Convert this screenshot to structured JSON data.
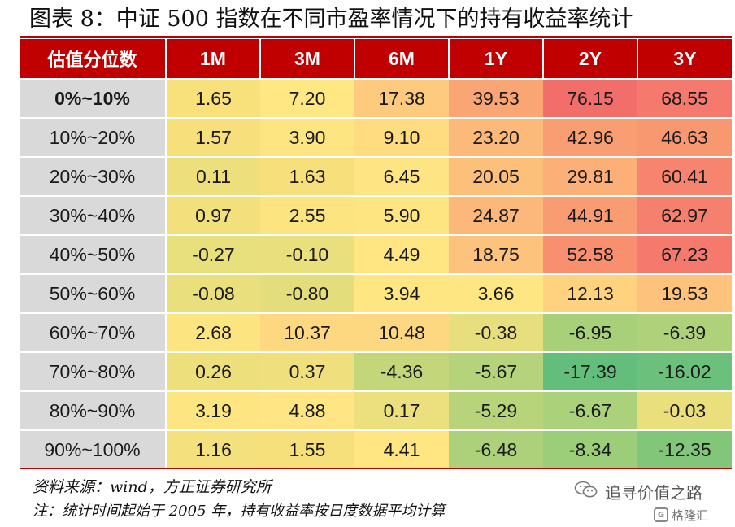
{
  "title": "图表 8：中证 500 指数在不同市盈率情况下的持有收益率统计",
  "table": {
    "headers": [
      "估值分位数",
      "1M",
      "3M",
      "6M",
      "1Y",
      "2Y",
      "3Y"
    ],
    "rows": [
      {
        "label": "0%~10%",
        "values": [
          "1.65",
          "7.20",
          "17.38",
          "39.53",
          "76.15",
          "68.55"
        ],
        "colors": [
          "#f8e07a",
          "#ffe784",
          "#fdca7e",
          "#f9a574",
          "#f26e6b",
          "#f5796d"
        ]
      },
      {
        "label": "10%~20%",
        "values": [
          "1.57",
          "3.90",
          "9.10",
          "23.20",
          "42.96",
          "46.63"
        ],
        "colors": [
          "#f7e07b",
          "#fde682",
          "#ffdc80",
          "#fcba7a",
          "#f99e73",
          "#f89871"
        ]
      },
      {
        "label": "20%~30%",
        "values": [
          "0.11",
          "1.63",
          "6.45",
          "20.05",
          "29.81",
          "60.41"
        ],
        "colors": [
          "#eedf7d",
          "#f7e07b",
          "#ffe483",
          "#fdc07b",
          "#fcb078",
          "#f6846e"
        ]
      },
      {
        "label": "30%~40%",
        "values": [
          "0.97",
          "2.55",
          "5.90",
          "24.87",
          "44.91",
          "62.97"
        ],
        "colors": [
          "#f3e07c",
          "#fce580",
          "#ffe482",
          "#fcb77a",
          "#f99c72",
          "#f6806e"
        ]
      },
      {
        "label": "40%~50%",
        "values": [
          "-0.27",
          "-0.10",
          "4.49",
          "18.75",
          "52.58",
          "67.23"
        ],
        "colors": [
          "#e8df7d",
          "#eadf7d",
          "#ffe683",
          "#fdc37c",
          "#f89070",
          "#f57a6d"
        ]
      },
      {
        "label": "50%~60%",
        "values": [
          "-0.08",
          "-0.80",
          "3.94",
          "3.66",
          "12.13",
          "19.53"
        ],
        "colors": [
          "#eadf7d",
          "#e3dd7c",
          "#fee682",
          "#fee682",
          "#fed27f",
          "#fdc27b"
        ]
      },
      {
        "label": "60%~70%",
        "values": [
          "2.68",
          "10.37",
          "10.48",
          "-0.38",
          "-6.95",
          "-6.39"
        ],
        "colors": [
          "#fce580",
          "#fed880",
          "#fed880",
          "#e7df7d",
          "#a8d079",
          "#aed17a"
        ]
      },
      {
        "label": "70%~80%",
        "values": [
          "0.26",
          "0.37",
          "-4.36",
          "-5.67",
          "-17.39",
          "-16.02"
        ],
        "colors": [
          "#eedf7d",
          "#efdf7d",
          "#c4d67a",
          "#b5d37a",
          "#63be7b",
          "#6bc07b"
        ]
      },
      {
        "label": "80%~90%",
        "values": [
          "3.19",
          "4.88",
          "0.17",
          "-5.29",
          "-6.67",
          "-0.03"
        ],
        "colors": [
          "#fde581",
          "#ffe583",
          "#ecdf7d",
          "#b8d47a",
          "#abd17a",
          "#e9df7d"
        ]
      },
      {
        "label": "90%~100%",
        "values": [
          "1.16",
          "1.55",
          "4.41",
          "-6.48",
          "-8.34",
          "-12.35"
        ],
        "colors": [
          "#f4e07c",
          "#f6e07b",
          "#ffe683",
          "#acd17a",
          "#9ccd79",
          "#82c67a"
        ]
      }
    ]
  },
  "source": "资料来源：wind，方正证券研究所",
  "note": "注：统计时间起始于 2005 年，持有收益率按日度数据平均计算",
  "watermark": {
    "account": "追寻价值之路",
    "icon": "wechat-icon",
    "logo_text": "格隆汇",
    "logo_mark": "G"
  }
}
